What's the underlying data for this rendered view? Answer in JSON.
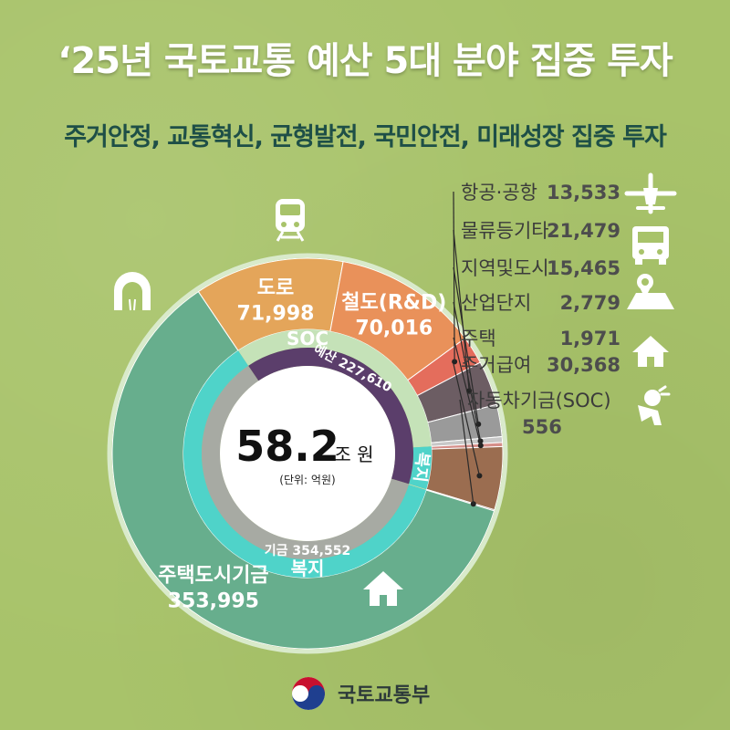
{
  "header": {
    "title": "‘25년 국토교통 예산 5대 분야 집중 투자",
    "subtitle": "주거안정, 교통혁신, 균형발전, 국민안전, 미래성장 집중 투자"
  },
  "center": {
    "total": "58.2",
    "unit": "조 원",
    "note": "(단위: 억원)"
  },
  "footer": {
    "ministry": "국토교통부"
  },
  "colors": {
    "road": "#e4a55a",
    "rail": "#e9915a",
    "aviation": "#e46d5c",
    "logistics": "#6c5d63",
    "regional": "#9a9a9a",
    "industrial": "#c8c8c8",
    "housing": "#d58f8a",
    "housing_benefit": "#9b6d50",
    "car_fund": "#7a5758",
    "housing_fund": "#67ae8d",
    "soc_ring": "#c5e2b8",
    "welfare_ring": "#4fd3c9",
    "budget_arc": "#5b3e6b",
    "fund_arc": "#a7aaa3",
    "hub": "#ffffff"
  },
  "icons": [
    "tunnel-icon",
    "train-icon",
    "airplane-icon",
    "truck-icon",
    "map-pin-icon",
    "factory-icon",
    "house-icon",
    "person-icon",
    "house-icon"
  ],
  "chart_data": {
    "type": "pie",
    "title": "‘25년 국토교통 예산 5대 분야 집중 투자",
    "unit": "억원",
    "total_label": "58.2조 원",
    "budget": {
      "name": "예산",
      "value": 227610
    },
    "fund": {
      "name": "기금",
      "value": 354552
    },
    "groups": [
      {
        "name": "SOC"
      },
      {
        "name": "복지"
      },
      {
        "name": "복지"
      }
    ],
    "slices": [
      {
        "name": "도로",
        "value": 71998,
        "group": "SOC",
        "source": "예산"
      },
      {
        "name": "철도(R&D)",
        "value": 70016,
        "group": "SOC",
        "source": "예산"
      },
      {
        "name": "항공·공항",
        "value": 13533,
        "group": "SOC",
        "source": "예산"
      },
      {
        "name": "물류등기타",
        "value": 21479,
        "group": "SOC",
        "source": "예산"
      },
      {
        "name": "지역및도시",
        "value": 15465,
        "group": "SOC",
        "source": "예산"
      },
      {
        "name": "산업단지",
        "value": 2779,
        "group": "SOC",
        "source": "예산"
      },
      {
        "name": "주택",
        "value": 1971,
        "group": "복지",
        "source": "예산"
      },
      {
        "name": "주거급여",
        "value": 30368,
        "group": "복지",
        "source": "예산"
      },
      {
        "name": "자동차기금(SOC)",
        "value": 556,
        "group": "SOC",
        "source": "기금"
      },
      {
        "name": "주택도시기금",
        "value": 353995,
        "group": "복지",
        "source": "기금"
      }
    ],
    "value_labels": [
      "71,998",
      "70,016",
      "13,533",
      "21,479",
      "15,465",
      "2,779",
      "1,971",
      "30,368",
      "556",
      "353,995"
    ],
    "budget_label": "227,610",
    "fund_label": "354,552"
  }
}
